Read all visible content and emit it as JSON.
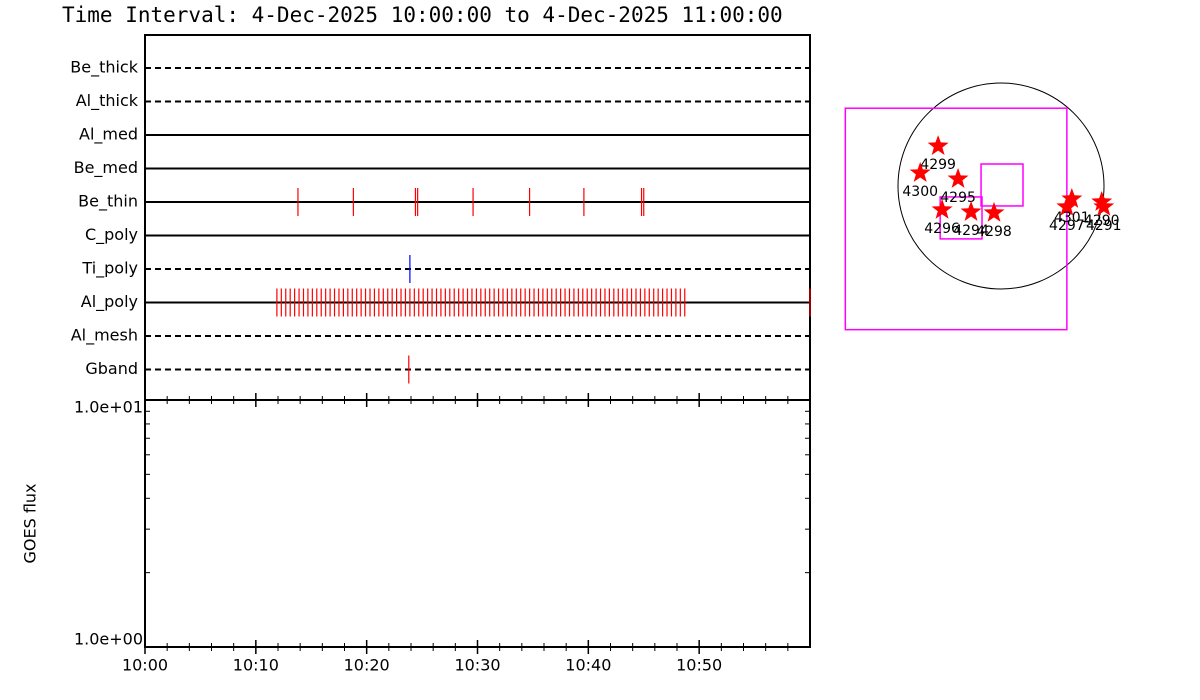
{
  "title": "Time Interval:  4-Dec-2025 10:00:00 to  4-Dec-2025 11:00:00",
  "chart_data": [
    {
      "type": "timeline",
      "xlim": [
        0,
        60
      ],
      "rows": [
        {
          "name": "Be_thick",
          "style": "dashed"
        },
        {
          "name": "Al_thick",
          "style": "dashed"
        },
        {
          "name": "Al_med",
          "style": "solid"
        },
        {
          "name": "Be_med",
          "style": "solid"
        },
        {
          "name": "Be_thin",
          "style": "solid",
          "color": "#ff0000",
          "events": [
            13.8,
            18.8,
            24.4,
            24.6,
            29.6,
            34.7,
            39.6,
            44.8,
            45.0
          ]
        },
        {
          "name": "C_poly",
          "style": "solid"
        },
        {
          "name": "Ti_poly",
          "style": "dashed",
          "color": "#0000ff",
          "events": [
            23.9
          ]
        },
        {
          "name": "Al_poly",
          "style": "solid",
          "color": "#ff0000",
          "events": [
            11.9,
            12.3,
            12.7,
            13.1,
            13.5,
            13.9,
            14.3,
            14.7,
            15.1,
            15.5,
            15.9,
            16.3,
            16.7,
            17.1,
            17.5,
            17.9,
            18.3,
            18.7,
            19.1,
            19.5,
            19.9,
            20.3,
            20.7,
            21.1,
            21.5,
            21.9,
            22.3,
            22.7,
            23.1,
            23.5,
            23.9,
            24.3,
            24.7,
            25.1,
            25.5,
            25.9,
            26.3,
            26.7,
            27.1,
            27.5,
            27.9,
            28.3,
            28.7,
            29.1,
            29.5,
            29.9,
            30.3,
            30.7,
            31.1,
            31.5,
            31.9,
            32.3,
            32.7,
            33.1,
            33.5,
            33.9,
            34.3,
            34.7,
            35.1,
            35.5,
            35.9,
            36.3,
            36.7,
            37.1,
            37.5,
            37.9,
            38.3,
            38.7,
            39.1,
            39.5,
            39.9,
            40.3,
            40.7,
            41.1,
            41.5,
            41.9,
            42.3,
            42.7,
            43.1,
            43.5,
            43.9,
            44.3,
            44.7,
            45.1,
            45.5,
            45.9,
            46.3,
            46.7,
            47.1,
            47.5,
            47.9,
            48.3,
            48.7,
            60
          ]
        },
        {
          "name": "Al_mesh",
          "style": "dashed"
        },
        {
          "name": "Gband",
          "style": "dashed",
          "color": "#ff0000",
          "events": [
            23.8
          ]
        }
      ]
    },
    {
      "type": "line",
      "ylabel": "GOES flux",
      "log_y": true,
      "xlim": [
        0,
        60
      ],
      "xticks": [
        {
          "value": 0,
          "label": "10:00"
        },
        {
          "value": 10,
          "label": "10:10"
        },
        {
          "value": 20,
          "label": "10:20"
        },
        {
          "value": 30,
          "label": "10:30"
        },
        {
          "value": 40,
          "label": "10:40"
        },
        {
          "value": 50,
          "label": "10:50"
        }
      ],
      "ylim": [
        1,
        10
      ],
      "yticks": [
        {
          "value": 1,
          "label": "1.0e+00"
        },
        {
          "value": 10,
          "label": "1.0e+01"
        }
      ]
    },
    {
      "type": "map",
      "radius": 960,
      "box_color": "#ff00ff",
      "marker_color": "#ff0000",
      "boxes": [
        {
          "x": [
            -1451,
            614
          ],
          "y": [
            -1339,
            725
          ]
        },
        {
          "x": [
            -186,
            205
          ],
          "y": [
            -186,
            205
          ]
        },
        {
          "x": [
            -567,
            -177
          ],
          "y": [
            -493,
            -102
          ]
        }
      ],
      "points": [
        {
          "label": "4299",
          "x": -586,
          "y": 372
        },
        {
          "label": "4300",
          "x": -753,
          "y": 121
        },
        {
          "label": "4295",
          "x": -400,
          "y": 65
        },
        {
          "label": "4296",
          "x": -549,
          "y": -223
        },
        {
          "label": "4294",
          "x": -279,
          "y": -242
        },
        {
          "label": "4298",
          "x": -65,
          "y": -251
        },
        {
          "label": "4297",
          "x": 614,
          "y": -195
        },
        {
          "label": "4301",
          "x": 660,
          "y": -121
        },
        {
          "label": "4290",
          "x": 939,
          "y": -149
        },
        {
          "label": "4291",
          "x": 958,
          "y": -195
        }
      ]
    }
  ]
}
